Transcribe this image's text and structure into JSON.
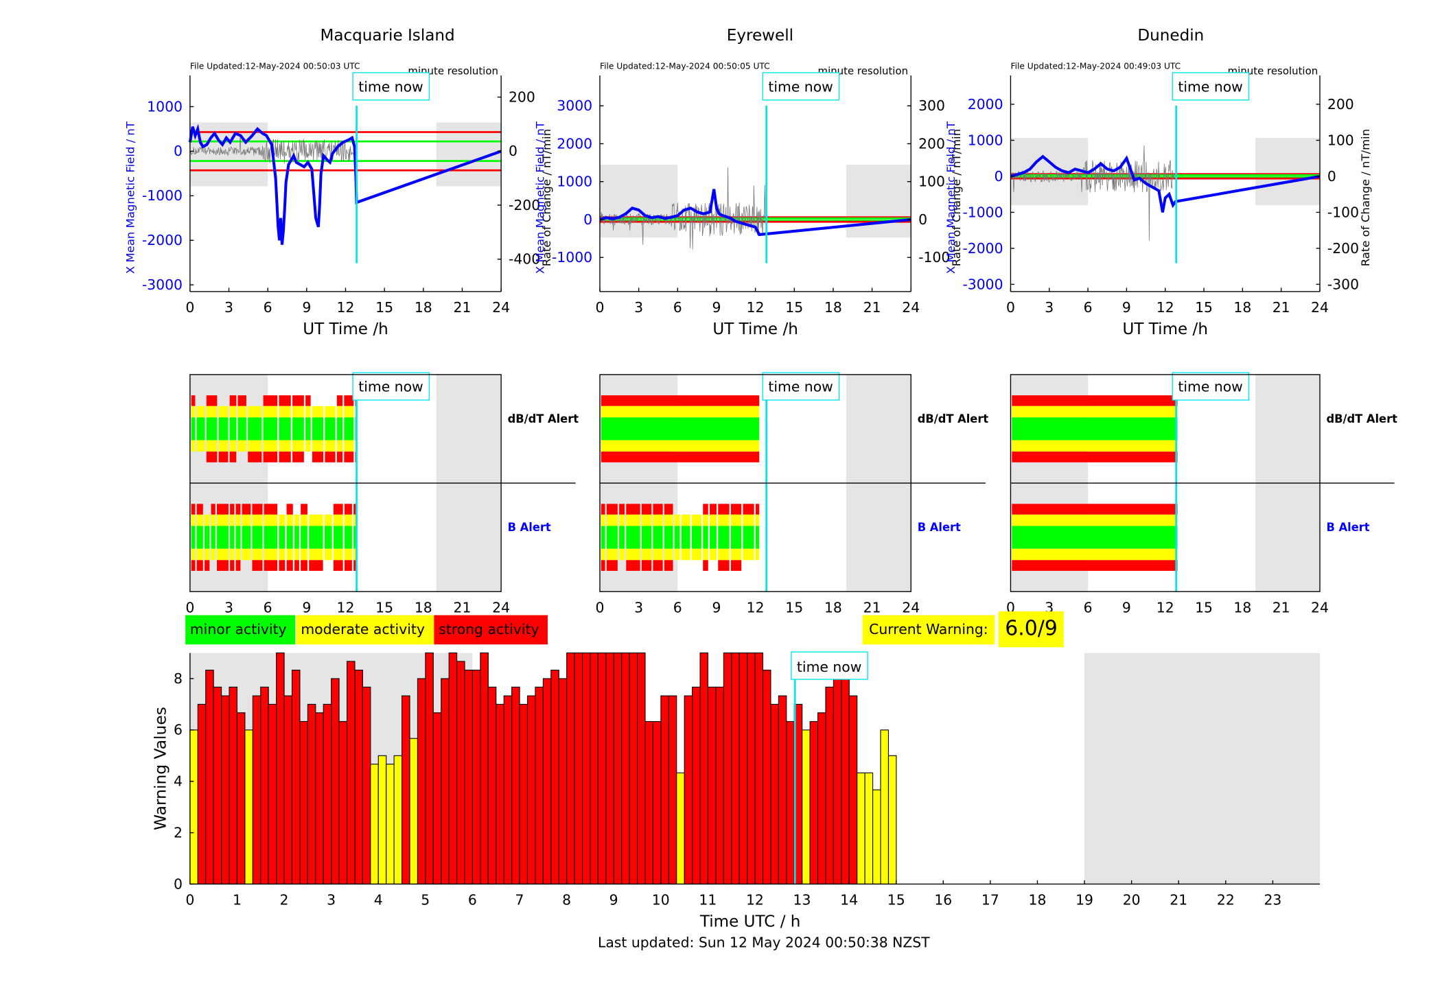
{
  "stations": [
    {
      "name": "Macquarie Island",
      "file_updated": "File Updated:12-May-2024 00:50:03 UTC",
      "resolution": "minute resolution",
      "ylabel_left": "X Mean Magnetic Field / nT",
      "ylabel_right": "Rate of Change / nT/min",
      "xlabel": "UT Time /h",
      "yticks_left": [
        -3000,
        -2000,
        -1000,
        0,
        1000
      ],
      "yticks_right": [
        -400,
        -200,
        0,
        200
      ],
      "xticks": [
        0,
        3,
        6,
        9,
        12,
        15,
        18,
        21,
        24
      ],
      "time_now_label": "time now",
      "dbdt_label": "dB/dT Alert",
      "b_label": "B Alert"
    },
    {
      "name": "Eyrewell",
      "file_updated": "File Updated:12-May-2024 00:50:05 UTC",
      "resolution": "minute resolution",
      "ylabel_left": "X Mean Magnetic Field / nT",
      "ylabel_right": "Rate of Change / nT/min",
      "xlabel": "UT Time /h",
      "yticks_left": [
        -1000,
        0,
        1000,
        2000,
        3000
      ],
      "yticks_right": [
        -100,
        0,
        100,
        200,
        300
      ],
      "xticks": [
        0,
        3,
        6,
        9,
        12,
        15,
        18,
        21,
        24
      ],
      "time_now_label": "time now",
      "dbdt_label": "dB/dT Alert",
      "b_label": "B Alert"
    },
    {
      "name": "Dunedin",
      "file_updated": "File Updated:12-May-2024 00:49:03 UTC",
      "resolution": "minute resolution",
      "ylabel_left": "X Mean Magnetic Field / nT",
      "ylabel_right": "Rate of Change / nT/min",
      "xlabel": "UT Time /h",
      "yticks_left": [
        -3000,
        -2000,
        -1000,
        0,
        1000,
        2000
      ],
      "yticks_right": [
        -300,
        -200,
        -100,
        0,
        100,
        200
      ],
      "xticks": [
        0,
        3,
        6,
        9,
        12,
        15,
        18,
        21,
        24
      ],
      "time_now_label": "time now",
      "dbdt_label": "dB/dT Alert",
      "b_label": "B Alert"
    }
  ],
  "legend": {
    "minor": "minor activity",
    "moderate": "moderate activity",
    "strong": "strong activity"
  },
  "current_warning": {
    "label": "Current Warning:",
    "value": "6.0/9"
  },
  "last_updated": "Last updated: Sun 12 May 2024 00:50:38 NZST",
  "colors": {
    "minor": "#00ff00",
    "moderate": "#ffff00",
    "strong": "#ff0000",
    "time_now": "#00e5ee",
    "field": "#0000ff",
    "shade": "#e5e5e5"
  },
  "chart_data": [
    {
      "type": "line",
      "station": "Macquarie Island",
      "x_range": [
        0,
        24
      ],
      "ylim_left": [
        -3150,
        1700
      ],
      "ylim_right": [
        -520,
        280
      ],
      "time_now": 12.85,
      "night_shade": [
        [
          0,
          6
        ],
        [
          19,
          24
        ]
      ],
      "alert_levels_left": [
        {
          "value": 430,
          "color": "red"
        },
        {
          "value": 220,
          "color": "green"
        },
        {
          "value": -220,
          "color": "green"
        },
        {
          "value": -430,
          "color": "red"
        }
      ],
      "field_series": {
        "x": [
          0,
          0.2,
          0.4,
          0.6,
          0.8,
          1.0,
          1.3,
          1.6,
          1.9,
          2.2,
          2.5,
          2.8,
          3.1,
          3.5,
          3.9,
          4.3,
          4.8,
          5.2,
          5.6,
          5.9,
          6.1,
          6.3,
          6.6,
          6.8,
          6.9,
          7.0,
          7.1,
          7.2,
          7.3,
          7.4,
          7.6,
          7.8,
          8.0,
          8.2,
          8.5,
          8.8,
          9.1,
          9.4,
          9.7,
          9.9,
          10.0,
          10.1,
          10.3,
          10.6,
          10.8,
          11.0,
          11.4,
          11.8,
          12.2,
          12.5,
          12.7,
          12.8,
          12.85,
          24
        ],
        "y": [
          200,
          550,
          350,
          500,
          200,
          100,
          150,
          300,
          400,
          250,
          150,
          300,
          200,
          400,
          350,
          200,
          350,
          500,
          400,
          350,
          250,
          150,
          -600,
          -1700,
          -2000,
          -1500,
          -2100,
          -1800,
          -1300,
          -700,
          -300,
          -200,
          -100,
          -250,
          -300,
          -350,
          -250,
          -400,
          -1500,
          -1700,
          -1200,
          -500,
          -100,
          -200,
          -250,
          -50,
          100,
          200,
          250,
          300,
          100,
          -600,
          -1150,
          0
        ]
      },
      "rate_series_note": "grey minute-resolution rate of change, spikes to approx +200 / -500 nT/min between 6h and 10h"
    },
    {
      "type": "line",
      "station": "Eyrewell",
      "x_range": [
        0,
        24
      ],
      "ylim_left": [
        -1900,
        3800
      ],
      "ylim_right": [
        -190,
        380
      ],
      "time_now": 12.85,
      "night_shade": [
        [
          0,
          6
        ],
        [
          19,
          24
        ]
      ],
      "alert_levels_left": [
        {
          "value": 60,
          "color": "red"
        },
        {
          "value": 30,
          "color": "green"
        },
        {
          "value": -30,
          "color": "green"
        },
        {
          "value": -60,
          "color": "red"
        }
      ],
      "field_series": {
        "x": [
          0,
          0.5,
          1,
          1.5,
          2,
          2.5,
          3,
          3.5,
          4,
          4.5,
          5,
          5.5,
          6,
          6.5,
          7,
          7.5,
          8,
          8.5,
          8.8,
          9.0,
          9.2,
          9.5,
          10,
          10.5,
          11,
          11.5,
          12,
          12.3,
          24
        ],
        "y": [
          0,
          50,
          20,
          60,
          150,
          300,
          250,
          100,
          50,
          80,
          30,
          60,
          100,
          250,
          300,
          200,
          150,
          200,
          800,
          300,
          150,
          100,
          50,
          -50,
          -100,
          -150,
          -200,
          -400,
          0
        ]
      },
      "rate_series_note": "grey rate of change, spike to approx +350 / -190 nT/min near 9h"
    },
    {
      "type": "line",
      "station": "Dunedin",
      "x_range": [
        0,
        24
      ],
      "ylim_left": [
        -3200,
        2800
      ],
      "ylim_right": [
        -320,
        280
      ],
      "time_now": 12.85,
      "night_shade": [
        [
          0,
          6
        ],
        [
          19,
          24
        ]
      ],
      "alert_levels_left": [
        {
          "value": 60,
          "color": "red"
        },
        {
          "value": 30,
          "color": "green"
        },
        {
          "value": -30,
          "color": "green"
        },
        {
          "value": -60,
          "color": "red"
        }
      ],
      "field_series": {
        "x": [
          0,
          0.5,
          1,
          1.5,
          2,
          2.5,
          3,
          3.5,
          4,
          4.5,
          5,
          5.5,
          6,
          6.5,
          7,
          7.5,
          8,
          8.5,
          9,
          9.3,
          9.6,
          10,
          10.5,
          11,
          11.5,
          11.8,
          12.0,
          12.3,
          12.6,
          12.8,
          24
        ],
        "y": [
          0,
          50,
          100,
          200,
          400,
          550,
          400,
          250,
          150,
          100,
          200,
          150,
          100,
          200,
          350,
          200,
          150,
          250,
          500,
          200,
          -100,
          -50,
          -200,
          -300,
          -400,
          -1000,
          -600,
          -500,
          -800,
          -700,
          0
        ]
      },
      "rate_series_note": "grey rate of change, spikes to approx +150 / -250 nT/min between 6h and 12.6h"
    },
    {
      "type": "bar",
      "title": "",
      "xlabel": "Time UTC / h",
      "ylabel": "Warning Values",
      "x_range": [
        0,
        24
      ],
      "ylim": [
        0,
        9
      ],
      "xticks": [
        0,
        1,
        2,
        3,
        4,
        5,
        6,
        7,
        8,
        9,
        10,
        11,
        12,
        13,
        14,
        15,
        16,
        17,
        18,
        19,
        20,
        21,
        22,
        23
      ],
      "yticks": [
        0,
        2,
        4,
        6,
        8
      ],
      "time_now": 12.85,
      "time_now_label": "time now",
      "night_shade": [
        [
          0,
          6
        ],
        [
          19,
          24
        ]
      ],
      "bin_width_h": 0.1667,
      "bar_start_h": 0,
      "values": [
        6.0,
        7.0,
        8.33,
        7.67,
        7.33,
        7.67,
        6.67,
        6.0,
        7.33,
        7.67,
        7.0,
        9.0,
        7.33,
        8.33,
        6.33,
        7.0,
        6.67,
        7.0,
        8.0,
        6.33,
        8.67,
        8.33,
        7.67,
        4.67,
        5.0,
        4.67,
        5.0,
        7.33,
        5.67,
        8.0,
        9.0,
        6.67,
        8.0,
        9.0,
        8.67,
        8.33,
        8.33,
        9.0,
        7.67,
        7.0,
        7.33,
        7.67,
        7.0,
        7.33,
        7.67,
        8.0,
        8.33,
        8.0,
        9.0,
        9.0,
        9.0,
        9.0,
        9.0,
        9.0,
        9.0,
        9.0,
        9.0,
        9.0,
        6.33,
        6.33,
        7.33,
        7.33,
        4.33,
        7.33,
        7.67,
        9.0,
        7.67,
        7.67,
        9.0,
        9.0,
        9.0,
        9.0,
        9.0,
        8.33,
        7.0,
        7.33,
        6.33,
        7.0,
        6.0,
        6.33,
        6.67,
        7.67,
        9.0,
        8.67,
        7.33,
        4.33,
        4.33,
        3.67,
        6.0,
        5.0
      ],
      "colors": [
        "yellow",
        "red",
        "red",
        "red",
        "red",
        "red",
        "red",
        "yellow",
        "red",
        "red",
        "red",
        "red",
        "red",
        "red",
        "red",
        "red",
        "red",
        "red",
        "red",
        "red",
        "red",
        "red",
        "red",
        "yellow",
        "yellow",
        "yellow",
        "yellow",
        "red",
        "yellow",
        "red",
        "red",
        "red",
        "red",
        "red",
        "red",
        "red",
        "red",
        "red",
        "red",
        "red",
        "red",
        "red",
        "red",
        "red",
        "red",
        "red",
        "red",
        "red",
        "red",
        "red",
        "red",
        "red",
        "red",
        "red",
        "red",
        "red",
        "red",
        "red",
        "red",
        "red",
        "red",
        "red",
        "yellow",
        "red",
        "red",
        "red",
        "red",
        "red",
        "red",
        "red",
        "red",
        "red",
        "red",
        "red",
        "red",
        "red",
        "red",
        "red",
        "yellow",
        "red",
        "red",
        "red",
        "red",
        "red",
        "red",
        "yellow",
        "yellow",
        "yellow",
        "yellow",
        "yellow"
      ]
    }
  ]
}
